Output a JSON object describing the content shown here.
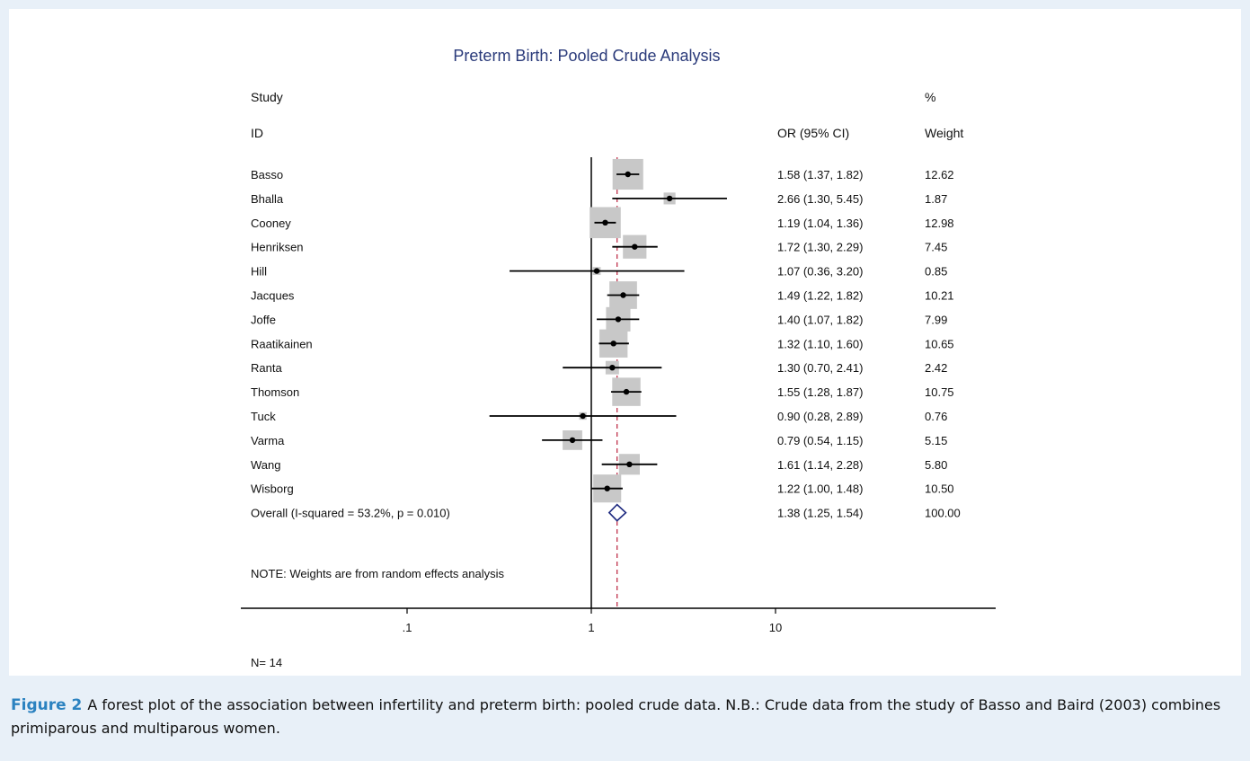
{
  "figure": {
    "label": "Figure 2",
    "caption": "A forest plot of the association between infertility and preterm birth: pooled crude data. N.B.: Crude data from the study of Basso and Baird (2003) combines primiparous and multiparous women."
  },
  "chart_data": {
    "type": "forest",
    "title": "Preterm Birth: Pooled Crude Analysis",
    "headers": {
      "study_line1": "Study",
      "study_line2": "ID",
      "or": "OR (95% CI)",
      "weight_line1": "%",
      "weight_line2": "Weight"
    },
    "x_scale": "log",
    "xlim": [
      0.06,
      40
    ],
    "x_ticks": [
      {
        "value": 0.1,
        "label": ".1"
      },
      {
        "value": 1,
        "label": "1"
      },
      {
        "value": 10,
        "label": "10"
      }
    ],
    "null_line": 1,
    "pooled_line": 1.38,
    "studies": [
      {
        "name": "Basso",
        "or": 1.58,
        "lo": 1.37,
        "hi": 1.82,
        "ci_text": "1.58 (1.37, 1.82)",
        "weight": 12.62,
        "weight_text": "12.62"
      },
      {
        "name": "Bhalla",
        "or": 2.66,
        "lo": 1.3,
        "hi": 5.45,
        "ci_text": "2.66 (1.30, 5.45)",
        "weight": 1.87,
        "weight_text": "1.87"
      },
      {
        "name": "Cooney",
        "or": 1.19,
        "lo": 1.04,
        "hi": 1.36,
        "ci_text": "1.19 (1.04, 1.36)",
        "weight": 12.98,
        "weight_text": "12.98"
      },
      {
        "name": "Henriksen",
        "or": 1.72,
        "lo": 1.3,
        "hi": 2.29,
        "ci_text": "1.72 (1.30, 2.29)",
        "weight": 7.45,
        "weight_text": "7.45"
      },
      {
        "name": "Hill",
        "or": 1.07,
        "lo": 0.36,
        "hi": 3.2,
        "ci_text": "1.07 (0.36, 3.20)",
        "weight": 0.85,
        "weight_text": "0.85"
      },
      {
        "name": "Jacques",
        "or": 1.49,
        "lo": 1.22,
        "hi": 1.82,
        "ci_text": "1.49 (1.22, 1.82)",
        "weight": 10.21,
        "weight_text": "10.21"
      },
      {
        "name": "Joffe",
        "or": 1.4,
        "lo": 1.07,
        "hi": 1.82,
        "ci_text": "1.40 (1.07, 1.82)",
        "weight": 7.99,
        "weight_text": "7.99"
      },
      {
        "name": "Raatikainen",
        "or": 1.32,
        "lo": 1.1,
        "hi": 1.6,
        "ci_text": "1.32 (1.10, 1.60)",
        "weight": 10.65,
        "weight_text": "10.65"
      },
      {
        "name": "Ranta",
        "or": 1.3,
        "lo": 0.7,
        "hi": 2.41,
        "ci_text": "1.30 (0.70, 2.41)",
        "weight": 2.42,
        "weight_text": "2.42"
      },
      {
        "name": "Thomson",
        "or": 1.55,
        "lo": 1.28,
        "hi": 1.87,
        "ci_text": "1.55 (1.28, 1.87)",
        "weight": 10.75,
        "weight_text": "10.75"
      },
      {
        "name": "Tuck",
        "or": 0.9,
        "lo": 0.28,
        "hi": 2.89,
        "ci_text": "0.90 (0.28, 2.89)",
        "weight": 0.76,
        "weight_text": "0.76"
      },
      {
        "name": "Varma",
        "or": 0.79,
        "lo": 0.54,
        "hi": 1.15,
        "ci_text": "0.79 (0.54, 1.15)",
        "weight": 5.15,
        "weight_text": "5.15"
      },
      {
        "name": "Wang",
        "or": 1.61,
        "lo": 1.14,
        "hi": 2.28,
        "ci_text": "1.61 (1.14, 2.28)",
        "weight": 5.8,
        "weight_text": "5.80"
      },
      {
        "name": "Wisborg",
        "or": 1.22,
        "lo": 1.0,
        "hi": 1.48,
        "ci_text": "1.22 (1.00, 1.48)",
        "weight": 10.5,
        "weight_text": "10.50"
      }
    ],
    "overall": {
      "label": "Overall  (I-squared = 53.2%, p = 0.010)",
      "or": 1.38,
      "lo": 1.25,
      "hi": 1.54,
      "ci_text": "1.38 (1.25, 1.54)",
      "weight_text": "100.00"
    },
    "note": "NOTE: Weights are from random effects analysis",
    "n_label": "N= 14",
    "colors": {
      "title": "#2a3a7a",
      "weight_box": "#c8c8c8",
      "pooled_line": "#c0304a",
      "diamond": "#1e2a80"
    }
  }
}
